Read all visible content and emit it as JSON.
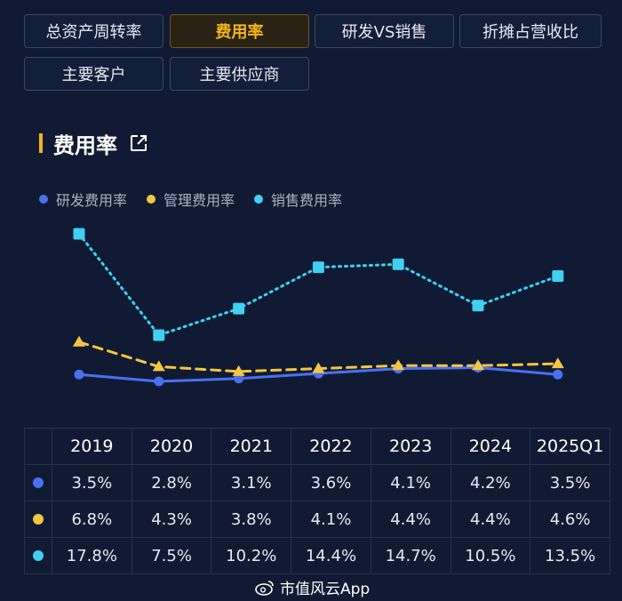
{
  "tabs": [
    {
      "label": "总资产周转率"
    },
    {
      "label": "费用率"
    },
    {
      "label": "研发VS销售"
    },
    {
      "label": "折摊占营收比"
    },
    {
      "label": "主要客户"
    },
    {
      "label": "主要供应商"
    }
  ],
  "section": {
    "title": "费用率"
  },
  "colors": {
    "rd": "#4a70f2",
    "admin": "#f4c542",
    "sales": "#3fd0f2",
    "accent": "#f4b41a"
  },
  "chart_data": {
    "type": "line",
    "x": [
      "2019",
      "2020",
      "2021",
      "2022",
      "2023",
      "2024",
      "2025Q1"
    ],
    "series": [
      {
        "name": "研发费用率",
        "values": [
          3.5,
          2.8,
          3.1,
          3.6,
          4.1,
          4.2,
          3.5
        ]
      },
      {
        "name": "管理费用率",
        "values": [
          6.8,
          4.3,
          3.8,
          4.1,
          4.4,
          4.4,
          4.6
        ]
      },
      {
        "name": "销售费用率",
        "values": [
          17.8,
          7.5,
          10.2,
          14.4,
          14.7,
          10.5,
          13.5
        ]
      }
    ],
    "legend_position": "top-left",
    "grid": false
  },
  "table": {
    "header": [
      "2019",
      "2020",
      "2021",
      "2022",
      "2023",
      "2024",
      "2025Q1"
    ],
    "rows": [
      {
        "values": [
          "3.5%",
          "2.8%",
          "3.1%",
          "3.6%",
          "4.1%",
          "4.2%",
          "3.5%"
        ]
      },
      {
        "values": [
          "6.8%",
          "4.3%",
          "3.8%",
          "4.1%",
          "4.4%",
          "4.4%",
          "4.6%"
        ]
      },
      {
        "values": [
          "17.8%",
          "7.5%",
          "10.2%",
          "14.4%",
          "14.7%",
          "10.5%",
          "13.5%"
        ]
      }
    ]
  },
  "watermark": {
    "text": "市值风云App",
    "icon": "weibo-icon"
  }
}
